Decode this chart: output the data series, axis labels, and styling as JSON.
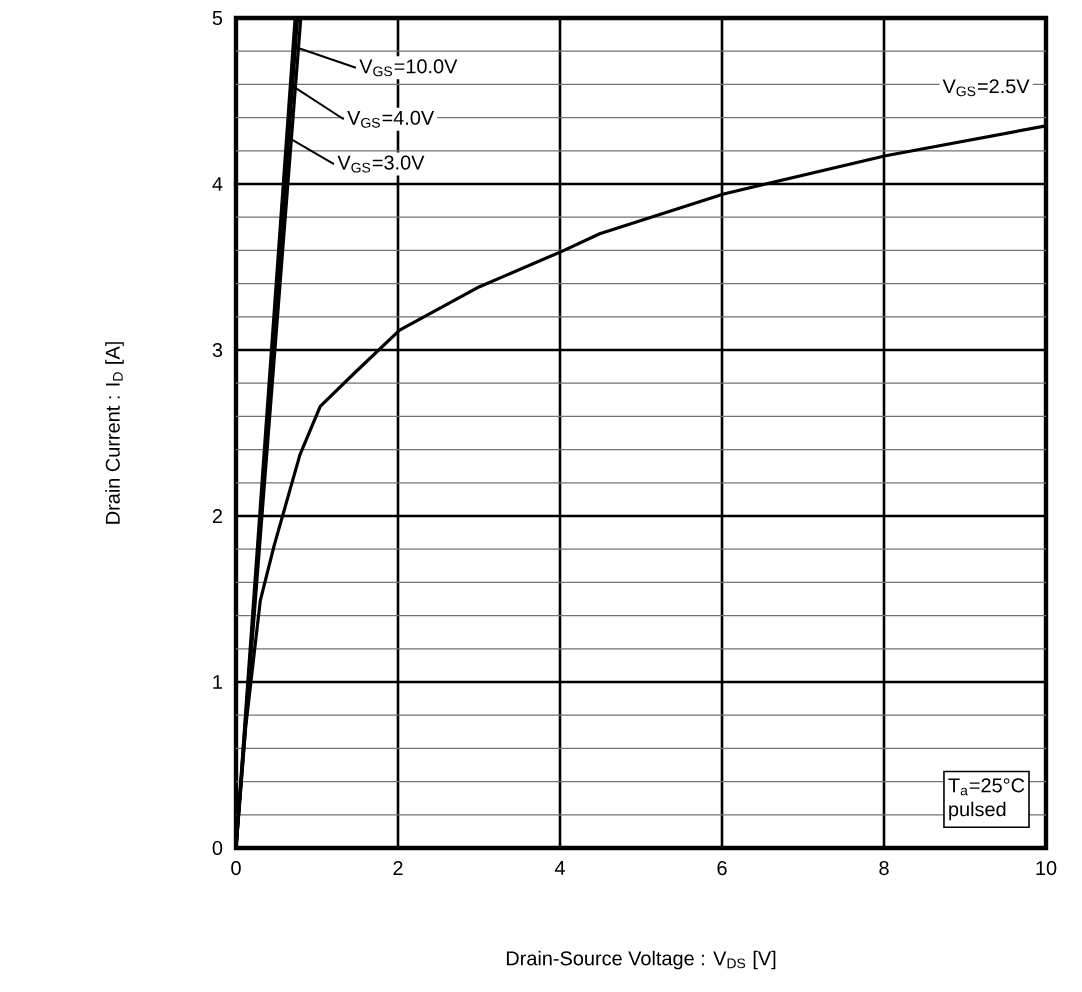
{
  "chart_data": {
    "type": "line",
    "xlabel": "Drain-Source Voltage : V$_{DS}$ [V]",
    "ylabel": "Drain Current : I$_{D}$ [A]",
    "xlim": [
      0,
      10
    ],
    "ylim": [
      0,
      5
    ],
    "xticks": [
      0,
      2,
      4,
      6,
      8,
      10
    ],
    "yticks": [
      0,
      {
        "value": 0.2,
        "label": null
      },
      {
        "value": 0.4,
        "label": null
      },
      {
        "value": 0.6,
        "label": null
      },
      {
        "value": 0.8,
        "label": null
      },
      1,
      {
        "value": 1.2,
        "label": null
      },
      {
        "value": 1.4,
        "label": null
      },
      {
        "value": 1.6,
        "label": null
      },
      {
        "value": 1.8,
        "label": null
      },
      2,
      {
        "value": 2.2,
        "label": null
      },
      {
        "value": 2.4,
        "label": null
      },
      {
        "value": 2.6,
        "label": null
      },
      {
        "value": 2.8,
        "label": null
      },
      3,
      {
        "value": 3.2,
        "label": null
      },
      {
        "value": 3.4,
        "label": null
      },
      {
        "value": 3.6,
        "label": null
      },
      {
        "value": 3.8,
        "label": null
      },
      4,
      {
        "value": 4.2,
        "label": null
      },
      {
        "value": 4.4,
        "label": null
      },
      {
        "value": 4.6,
        "label": null
      },
      {
        "value": 4.8,
        "label": null
      },
      5
    ],
    "grid": true,
    "legend": "top left",
    "annotations": [
      "T$_{a}$=25°C",
      "pulsed"
    ],
    "series": [
      {
        "name": "V$_{GS}$=10.0V",
        "color": "#000000",
        "x": [
          0,
          0.73
        ],
        "values": [
          0,
          5
        ]
      },
      {
        "name": "V$_{GS}$=4.0V",
        "color": "#000000",
        "x": [
          0,
          0.76
        ],
        "values": [
          0,
          5
        ]
      },
      {
        "name": "V$_{GS}$=3.0V",
        "color": "#000000",
        "x": [
          0,
          0.8
        ],
        "values": [
          0,
          5
        ]
      },
      {
        "name": "V$_{GS}$=2.5V",
        "color": "#000000",
        "x": [
          0,
          0.12,
          0.3,
          0.47,
          0.79,
          1.04,
          1.46,
          2.02,
          3,
          4.05,
          4.49,
          6.02,
          8.02,
          10
        ],
        "values": [
          0,
          0.73,
          1.49,
          1.82,
          2.37,
          2.66,
          2.86,
          3.12,
          3.38,
          3.6,
          3.7,
          3.94,
          4.17,
          4.35
        ]
      }
    ]
  }
}
